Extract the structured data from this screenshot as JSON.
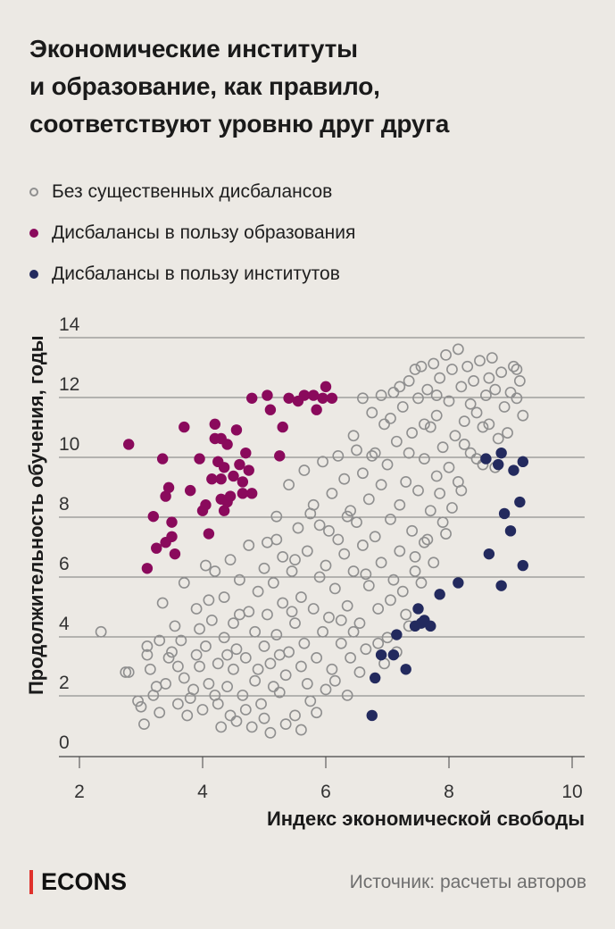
{
  "title_lines": [
    "Экономические институты",
    "и образование, как правило,",
    "соответствуют уровню друг друга"
  ],
  "legend": [
    {
      "label": "Без существенных дисбалансов",
      "key": "none"
    },
    {
      "label": "Дисбалансы в пользу образования",
      "key": "education"
    },
    {
      "label": "Дисбалансы в пользу институтов",
      "key": "institutions"
    }
  ],
  "colors": {
    "background": "#ece9e4",
    "none": "#8f8f8f",
    "education": "#8a0a5c",
    "institutions": "#232a5e",
    "grid": "#7a7a7a",
    "logo_bar": "#e0312b"
  },
  "footer": {
    "logo": "ECONS",
    "source": "Источник: расчеты авторов"
  },
  "chart_data": {
    "type": "scatter",
    "xlabel": "Индекс экономической свободы",
    "ylabel": "Продолжительность обучения, годы",
    "xlim": [
      1.8,
      10.2
    ],
    "ylim": [
      -0.5,
      14.5
    ],
    "x_ticks": [
      2,
      4,
      6,
      8,
      10
    ],
    "y_ticks": [
      0,
      2,
      4,
      6,
      8,
      10,
      12,
      14
    ],
    "grid": "horizontal",
    "legend_position": "top",
    "series": [
      {
        "key": "education",
        "points": [
          [
            2.8,
            10.3
          ],
          [
            3.1,
            6.0
          ],
          [
            3.2,
            7.8
          ],
          [
            3.25,
            6.7
          ],
          [
            3.35,
            9.8
          ],
          [
            3.4,
            8.5
          ],
          [
            3.4,
            6.9
          ],
          [
            3.45,
            8.8
          ],
          [
            3.5,
            7.6
          ],
          [
            3.5,
            7.1
          ],
          [
            3.55,
            6.5
          ],
          [
            3.7,
            10.9
          ],
          [
            3.8,
            8.7
          ],
          [
            3.95,
            9.8
          ],
          [
            4.0,
            8.0
          ],
          [
            4.05,
            8.2
          ],
          [
            4.1,
            7.2
          ],
          [
            4.15,
            9.1
          ],
          [
            4.2,
            11.0
          ],
          [
            4.2,
            10.5
          ],
          [
            4.25,
            9.7
          ],
          [
            4.3,
            10.5
          ],
          [
            4.3,
            8.4
          ],
          [
            4.3,
            9.1
          ],
          [
            4.35,
            9.5
          ],
          [
            4.35,
            8.0
          ],
          [
            4.4,
            10.3
          ],
          [
            4.4,
            8.3
          ],
          [
            4.45,
            8.5
          ],
          [
            4.5,
            9.2
          ],
          [
            4.55,
            10.8
          ],
          [
            4.6,
            9.6
          ],
          [
            4.65,
            8.6
          ],
          [
            4.65,
            9.0
          ],
          [
            4.7,
            10.0
          ],
          [
            4.75,
            9.4
          ],
          [
            4.8,
            8.6
          ],
          [
            4.8,
            11.9
          ],
          [
            5.05,
            12.0
          ],
          [
            5.1,
            11.5
          ],
          [
            5.25,
            9.9
          ],
          [
            5.3,
            10.9
          ],
          [
            5.4,
            11.9
          ],
          [
            5.55,
            11.8
          ],
          [
            5.65,
            12.0
          ],
          [
            5.8,
            12.0
          ],
          [
            5.85,
            11.5
          ],
          [
            5.95,
            11.9
          ],
          [
            6.0,
            12.3
          ],
          [
            6.1,
            11.9
          ]
        ]
      },
      {
        "key": "institutions",
        "points": [
          [
            6.75,
            0.9
          ],
          [
            6.8,
            2.2
          ],
          [
            6.9,
            3.0
          ],
          [
            7.1,
            3.0
          ],
          [
            7.15,
            3.7
          ],
          [
            7.3,
            2.5
          ],
          [
            7.45,
            4.0
          ],
          [
            7.5,
            4.6
          ],
          [
            7.55,
            4.1
          ],
          [
            7.6,
            4.2
          ],
          [
            7.7,
            4.0
          ],
          [
            7.85,
            5.1
          ],
          [
            8.15,
            5.5
          ],
          [
            8.6,
            9.8
          ],
          [
            8.65,
            6.5
          ],
          [
            8.8,
            9.6
          ],
          [
            8.85,
            5.4
          ],
          [
            8.85,
            10.0
          ],
          [
            8.9,
            7.9
          ],
          [
            9.0,
            7.3
          ],
          [
            9.05,
            9.4
          ],
          [
            9.15,
            8.3
          ],
          [
            9.2,
            9.7
          ],
          [
            9.2,
            6.1
          ]
        ]
      },
      {
        "key": "none",
        "points": [
          [
            2.35,
            3.8
          ],
          [
            2.75,
            2.4
          ],
          [
            2.8,
            2.4
          ],
          [
            2.95,
            1.4
          ],
          [
            3.0,
            1.2
          ],
          [
            3.1,
            3.0
          ],
          [
            3.1,
            3.3
          ],
          [
            3.15,
            2.5
          ],
          [
            3.2,
            1.6
          ],
          [
            3.3,
            3.5
          ],
          [
            3.3,
            1.0
          ],
          [
            3.35,
            4.8
          ],
          [
            3.4,
            2.0
          ],
          [
            3.45,
            2.9
          ],
          [
            3.55,
            4.0
          ],
          [
            3.6,
            1.3
          ],
          [
            3.65,
            3.5
          ],
          [
            3.7,
            2.2
          ],
          [
            3.7,
            5.5
          ],
          [
            3.75,
            0.9
          ],
          [
            3.85,
            1.8
          ],
          [
            3.9,
            3.0
          ],
          [
            3.9,
            4.6
          ],
          [
            3.95,
            2.6
          ],
          [
            4.0,
            1.1
          ],
          [
            4.05,
            3.3
          ],
          [
            4.05,
            6.1
          ],
          [
            4.1,
            2.0
          ],
          [
            4.15,
            4.2
          ],
          [
            4.2,
            5.9
          ],
          [
            4.25,
            1.3
          ],
          [
            4.25,
            2.7
          ],
          [
            4.3,
            0.5
          ],
          [
            4.35,
            3.6
          ],
          [
            4.35,
            5.0
          ],
          [
            4.4,
            1.9
          ],
          [
            4.45,
            6.3
          ],
          [
            4.5,
            2.5
          ],
          [
            4.5,
            4.1
          ],
          [
            4.55,
            0.7
          ],
          [
            4.55,
            3.2
          ],
          [
            4.6,
            5.6
          ],
          [
            4.65,
            1.6
          ],
          [
            4.7,
            2.9
          ],
          [
            4.75,
            4.5
          ],
          [
            4.75,
            6.8
          ],
          [
            4.8,
            0.5
          ],
          [
            4.85,
            3.8
          ],
          [
            4.85,
            2.1
          ],
          [
            4.9,
            5.2
          ],
          [
            4.95,
            1.3
          ],
          [
            5.0,
            3.3
          ],
          [
            5.0,
            6.0
          ],
          [
            5.05,
            4.4
          ],
          [
            5.1,
            0.3
          ],
          [
            5.1,
            2.7
          ],
          [
            5.15,
            5.5
          ],
          [
            5.2,
            3.7
          ],
          [
            5.2,
            7.0
          ],
          [
            5.25,
            1.7
          ],
          [
            5.3,
            4.8
          ],
          [
            5.3,
            6.4
          ],
          [
            5.35,
            2.3
          ],
          [
            5.4,
            3.1
          ],
          [
            5.45,
            5.9
          ],
          [
            5.5,
            0.9
          ],
          [
            5.5,
            4.1
          ],
          [
            5.55,
            7.4
          ],
          [
            5.6,
            2.6
          ],
          [
            5.6,
            5.0
          ],
          [
            5.65,
            3.4
          ],
          [
            5.7,
            6.6
          ],
          [
            5.75,
            1.4
          ],
          [
            5.8,
            4.6
          ],
          [
            5.8,
            8.2
          ],
          [
            5.85,
            2.9
          ],
          [
            5.9,
            5.7
          ],
          [
            5.9,
            7.5
          ],
          [
            5.95,
            3.8
          ],
          [
            6.0,
            1.8
          ],
          [
            6.0,
            6.1
          ],
          [
            6.05,
            4.3
          ],
          [
            6.1,
            8.6
          ],
          [
            6.1,
            2.5
          ],
          [
            6.15,
            5.3
          ],
          [
            6.2,
            7.0
          ],
          [
            6.25,
            3.4
          ],
          [
            6.3,
            9.1
          ],
          [
            6.3,
            6.5
          ],
          [
            6.35,
            4.7
          ],
          [
            6.4,
            8.0
          ],
          [
            6.4,
            2.9
          ],
          [
            6.45,
            5.9
          ],
          [
            6.5,
            7.6
          ],
          [
            6.5,
            10.1
          ],
          [
            6.55,
            4.1
          ],
          [
            6.6,
            6.8
          ],
          [
            6.6,
            9.3
          ],
          [
            6.65,
            3.2
          ],
          [
            6.7,
            8.4
          ],
          [
            6.7,
            5.4
          ],
          [
            6.75,
            11.4
          ],
          [
            6.8,
            7.1
          ],
          [
            6.8,
            10.0
          ],
          [
            6.85,
            4.6
          ],
          [
            6.9,
            8.9
          ],
          [
            6.9,
            6.2
          ],
          [
            6.95,
            11.0
          ],
          [
            7.0,
            9.6
          ],
          [
            7.0,
            3.6
          ],
          [
            7.05,
            7.7
          ],
          [
            7.1,
            12.1
          ],
          [
            7.1,
            5.6
          ],
          [
            7.15,
            10.4
          ],
          [
            7.2,
            8.2
          ],
          [
            7.2,
            6.6
          ],
          [
            7.25,
            11.6
          ],
          [
            7.3,
            9.0
          ],
          [
            7.3,
            4.4
          ],
          [
            7.35,
            12.5
          ],
          [
            7.4,
            7.3
          ],
          [
            7.4,
            10.7
          ],
          [
            7.45,
            5.9
          ],
          [
            7.5,
            11.9
          ],
          [
            7.5,
            8.7
          ],
          [
            7.55,
            13.0
          ],
          [
            7.6,
            9.8
          ],
          [
            7.6,
            6.9
          ],
          [
            7.65,
            12.2
          ],
          [
            7.7,
            10.9
          ],
          [
            7.7,
            8.0
          ],
          [
            7.75,
            13.1
          ],
          [
            7.8,
            11.3
          ],
          [
            7.8,
            9.2
          ],
          [
            7.85,
            12.6
          ],
          [
            7.9,
            10.2
          ],
          [
            7.9,
            7.6
          ],
          [
            7.95,
            13.4
          ],
          [
            8.0,
            11.8
          ],
          [
            8.0,
            9.5
          ],
          [
            8.05,
            12.9
          ],
          [
            8.1,
            10.6
          ],
          [
            8.15,
            13.6
          ],
          [
            8.2,
            12.3
          ],
          [
            8.2,
            8.7
          ],
          [
            8.25,
            11.1
          ],
          [
            8.3,
            13.0
          ],
          [
            8.35,
            10.0
          ],
          [
            8.4,
            12.5
          ],
          [
            8.45,
            11.4
          ],
          [
            8.5,
            13.2
          ],
          [
            8.55,
            9.6
          ],
          [
            8.6,
            12.0
          ],
          [
            8.65,
            11.0
          ],
          [
            8.7,
            13.3
          ],
          [
            8.75,
            12.2
          ],
          [
            8.8,
            10.5
          ],
          [
            8.85,
            12.8
          ],
          [
            8.9,
            11.6
          ],
          [
            9.0,
            12.1
          ],
          [
            9.05,
            13.0
          ],
          [
            9.1,
            11.9
          ],
          [
            9.15,
            12.5
          ],
          [
            9.2,
            11.3
          ],
          [
            3.05,
            0.6
          ],
          [
            3.25,
            1.9
          ],
          [
            3.5,
            3.1
          ],
          [
            3.6,
            2.6
          ],
          [
            3.8,
            1.5
          ],
          [
            3.95,
            3.9
          ],
          [
            4.1,
            4.9
          ],
          [
            4.2,
            1.6
          ],
          [
            4.4,
            3.0
          ],
          [
            4.45,
            0.9
          ],
          [
            4.6,
            4.4
          ],
          [
            4.7,
            1.1
          ],
          [
            4.9,
            2.5
          ],
          [
            5.0,
            0.8
          ],
          [
            5.15,
            1.9
          ],
          [
            5.25,
            3.0
          ],
          [
            5.35,
            0.6
          ],
          [
            5.45,
            4.5
          ],
          [
            5.6,
            0.4
          ],
          [
            5.7,
            2.0
          ],
          [
            5.85,
            1.0
          ],
          [
            6.15,
            2.1
          ],
          [
            6.25,
            4.2
          ],
          [
            6.35,
            1.6
          ],
          [
            6.45,
            3.8
          ],
          [
            6.55,
            2.4
          ],
          [
            6.65,
            5.8
          ],
          [
            6.85,
            3.4
          ],
          [
            6.95,
            2.7
          ],
          [
            7.05,
            4.9
          ],
          [
            7.15,
            3.1
          ],
          [
            7.25,
            5.2
          ],
          [
            7.35,
            4.0
          ],
          [
            7.45,
            6.4
          ],
          [
            7.55,
            5.5
          ],
          [
            7.65,
            7.0
          ],
          [
            7.75,
            6.2
          ],
          [
            7.85,
            8.6
          ],
          [
            7.95,
            7.2
          ],
          [
            8.05,
            8.1
          ],
          [
            8.15,
            9.0
          ],
          [
            8.25,
            10.3
          ],
          [
            8.35,
            11.7
          ],
          [
            8.45,
            9.8
          ],
          [
            8.55,
            10.9
          ],
          [
            8.65,
            12.6
          ],
          [
            8.75,
            9.5
          ],
          [
            8.95,
            10.7
          ],
          [
            9.1,
            12.9
          ],
          [
            5.05,
            6.9
          ],
          [
            5.2,
            7.8
          ],
          [
            5.4,
            8.9
          ],
          [
            5.5,
            6.3
          ],
          [
            5.65,
            9.4
          ],
          [
            5.75,
            7.9
          ],
          [
            5.95,
            9.7
          ],
          [
            6.05,
            7.3
          ],
          [
            6.2,
            9.9
          ],
          [
            6.35,
            7.8
          ],
          [
            6.45,
            10.6
          ],
          [
            6.6,
            11.9
          ],
          [
            6.75,
            9.9
          ],
          [
            6.9,
            12.0
          ],
          [
            7.05,
            11.2
          ],
          [
            7.2,
            12.3
          ],
          [
            7.35,
            10.0
          ],
          [
            7.45,
            12.9
          ],
          [
            7.6,
            11.0
          ],
          [
            7.8,
            12.0
          ]
        ]
      }
    ]
  }
}
